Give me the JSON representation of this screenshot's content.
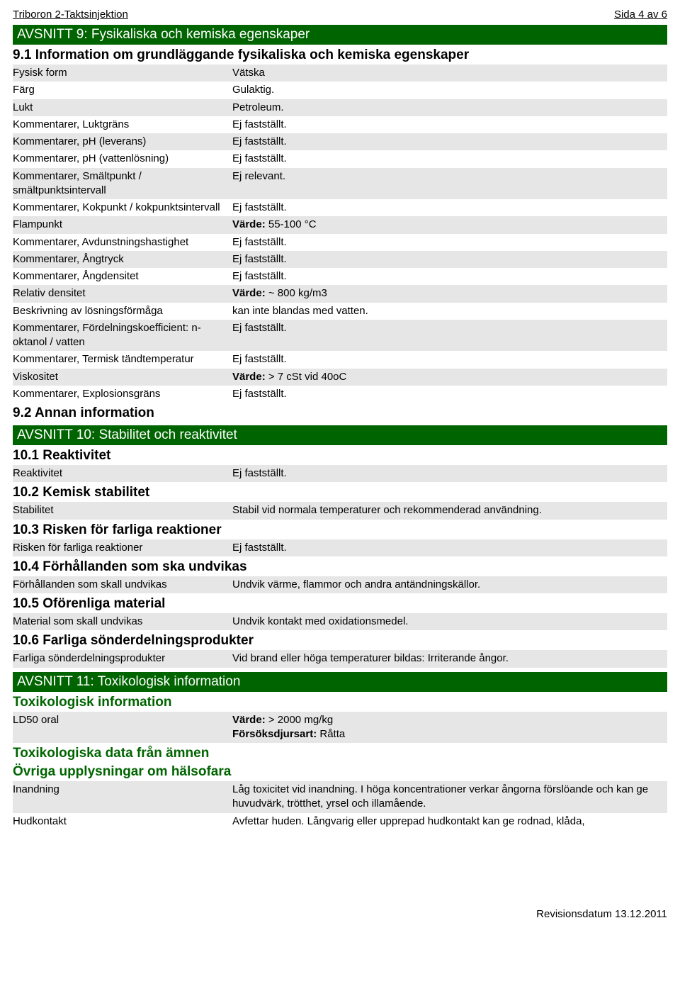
{
  "header": {
    "left": "Triboron 2-Taktsinjektion",
    "right": "Sida 4 av 6"
  },
  "section9": {
    "title": "AVSNITT 9: Fysikaliska och kemiska egenskaper",
    "sub1": "9.1 Information om grundläggande fysikaliska och kemiska egenskaper",
    "rows": [
      {
        "k": "Fysisk form",
        "v": "Vätska",
        "shade": true
      },
      {
        "k": "Färg",
        "v": "Gulaktig.",
        "shade": false
      },
      {
        "k": "Lukt",
        "v": "Petroleum.",
        "shade": true
      },
      {
        "k": "Kommentarer, Luktgräns",
        "v": "Ej fastställt.",
        "shade": false
      },
      {
        "k": "Kommentarer, pH (leverans)",
        "v": "Ej fastställt.",
        "shade": true
      },
      {
        "k": "Kommentarer, pH (vattenlösning)",
        "v": "Ej fastställt.",
        "shade": false
      },
      {
        "k": "Kommentarer, Smältpunkt / smältpunktsintervall",
        "v": "Ej relevant.",
        "shade": true
      },
      {
        "k": "Kommentarer, Kokpunkt / kokpunktsintervall",
        "v": "Ej fastställt.",
        "shade": false
      },
      {
        "k": "Flampunkt",
        "vlabel": "Värde:",
        "v": " 55-100 °C",
        "shade": true,
        "bold": true
      },
      {
        "k": "Kommentarer, Avdunstningshastighet",
        "v": "Ej fastställt.",
        "shade": false
      },
      {
        "k": "Kommentarer, Ångtryck",
        "v": "Ej fastställt.",
        "shade": true
      },
      {
        "k": "Kommentarer, Ångdensitet",
        "v": "Ej fastställt.",
        "shade": false
      },
      {
        "k": "Relativ densitet",
        "vlabel": "Värde:",
        "v": " ~ 800 kg/m3",
        "shade": true,
        "bold": true
      },
      {
        "k": "Beskrivning av lösningsförmåga",
        "v": "kan inte blandas med vatten.",
        "shade": false
      },
      {
        "k": "Kommentarer, Fördelningskoefficient: n-oktanol / vatten",
        "v": "Ej fastställt.",
        "shade": true
      },
      {
        "k": "Kommentarer, Termisk tändtemperatur",
        "v": "Ej fastställt.",
        "shade": false
      },
      {
        "k": "Viskositet",
        "vlabel": "Värde:",
        "v": " > 7 cSt vid 40oC",
        "shade": true,
        "bold": true
      },
      {
        "k": "Kommentarer, Explosionsgräns",
        "v": "Ej fastställt.",
        "shade": false
      }
    ],
    "sub2": "9.2 Annan information"
  },
  "section10": {
    "title": "AVSNITT 10: Stabilitet och reaktivitet",
    "sub1": "10.1 Reaktivitet",
    "r1": {
      "k": "Reaktivitet",
      "v": "Ej fastställt."
    },
    "sub2": "10.2 Kemisk stabilitet",
    "r2": {
      "k": "Stabilitet",
      "v": "Stabil vid normala temperaturer och rekommenderad användning."
    },
    "sub3": "10.3 Risken för farliga reaktioner",
    "r3": {
      "k": "Risken för farliga reaktioner",
      "v": "Ej fastställt."
    },
    "sub4": "10.4 Förhållanden som ska undvikas",
    "r4": {
      "k": "Förhållanden som skall undvikas",
      "v": "Undvik värme, flammor och andra antändningskällor."
    },
    "sub5": "10.5 Oförenliga material",
    "r5": {
      "k": "Material som skall undvikas",
      "v": "Undvik kontakt med oxidationsmedel."
    },
    "sub6": "10.6 Farliga sönderdelningsprodukter",
    "r6": {
      "k": "Farliga sönderdelningsprodukter",
      "v": "Vid brand eller höga temperaturer bildas: Irriterande ångor."
    }
  },
  "section11": {
    "title": "AVSNITT 11: Toxikologisk information",
    "sub_tox": "Toxikologisk information",
    "ld50": {
      "k": "LD50 oral",
      "vlabel": "Värde:",
      "v": " > 2000 mg/kg",
      "line2label": "Försöksdjursart:",
      "line2": " Råtta"
    },
    "sub_data": "Toxikologiska data från ämnen",
    "sub_ov": "Övriga upplysningar om hälsofara",
    "inh": {
      "k": "Inandning",
      "v": "Låg toxicitet vid inandning. I höga koncentrationer verkar ångorna förslöande och kan ge huvudvärk, trötthet, yrsel och illamående."
    },
    "hud": {
      "k": "Hudkontakt",
      "v": "Avfettar huden. Långvarig eller upprepad hudkontakt kan ge rodnad, klåda,"
    }
  },
  "footer": "Revisionsdatum 13.12.2011"
}
